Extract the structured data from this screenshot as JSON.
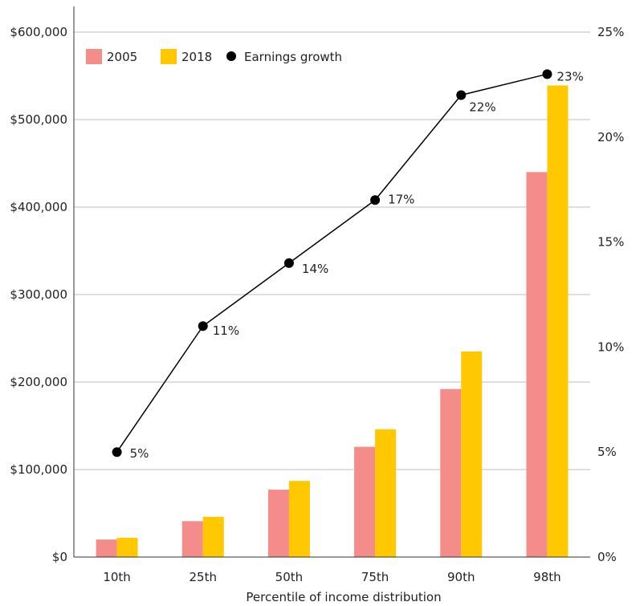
{
  "chart_data": {
    "type": "bar",
    "categories": [
      "10th",
      "25th",
      "50th",
      "75th",
      "90th",
      "98th"
    ],
    "xlabel": "Percentile of income distribution",
    "ylabel": "",
    "ylim": [
      0,
      600000
    ],
    "yticks": [
      "$0",
      "$100,000",
      "$200,000",
      "$300,000",
      "$400,000",
      "$500,000",
      "$600,000"
    ],
    "y2lim": [
      0,
      25
    ],
    "y2ticks": [
      "0%",
      "5%",
      "10%",
      "15%",
      "20%",
      "25%"
    ],
    "grid": true,
    "legend_position": "top-left",
    "series": [
      {
        "name": "2005",
        "kind": "bar",
        "axis": "left",
        "color": "#F48C8A",
        "values": [
          20000,
          41000,
          77000,
          126000,
          192000,
          440000
        ]
      },
      {
        "name": "2018",
        "kind": "bar",
        "axis": "left",
        "color": "#FFC800",
        "values": [
          22000,
          46000,
          87000,
          146000,
          235000,
          539000
        ]
      },
      {
        "name": "Earnings growth",
        "kind": "line",
        "axis": "right",
        "color": "#000000",
        "values": [
          5,
          11,
          14,
          17,
          22,
          23
        ],
        "labels": [
          "5%",
          "11%",
          "14%",
          "17%",
          "22%",
          "23%"
        ]
      }
    ]
  }
}
